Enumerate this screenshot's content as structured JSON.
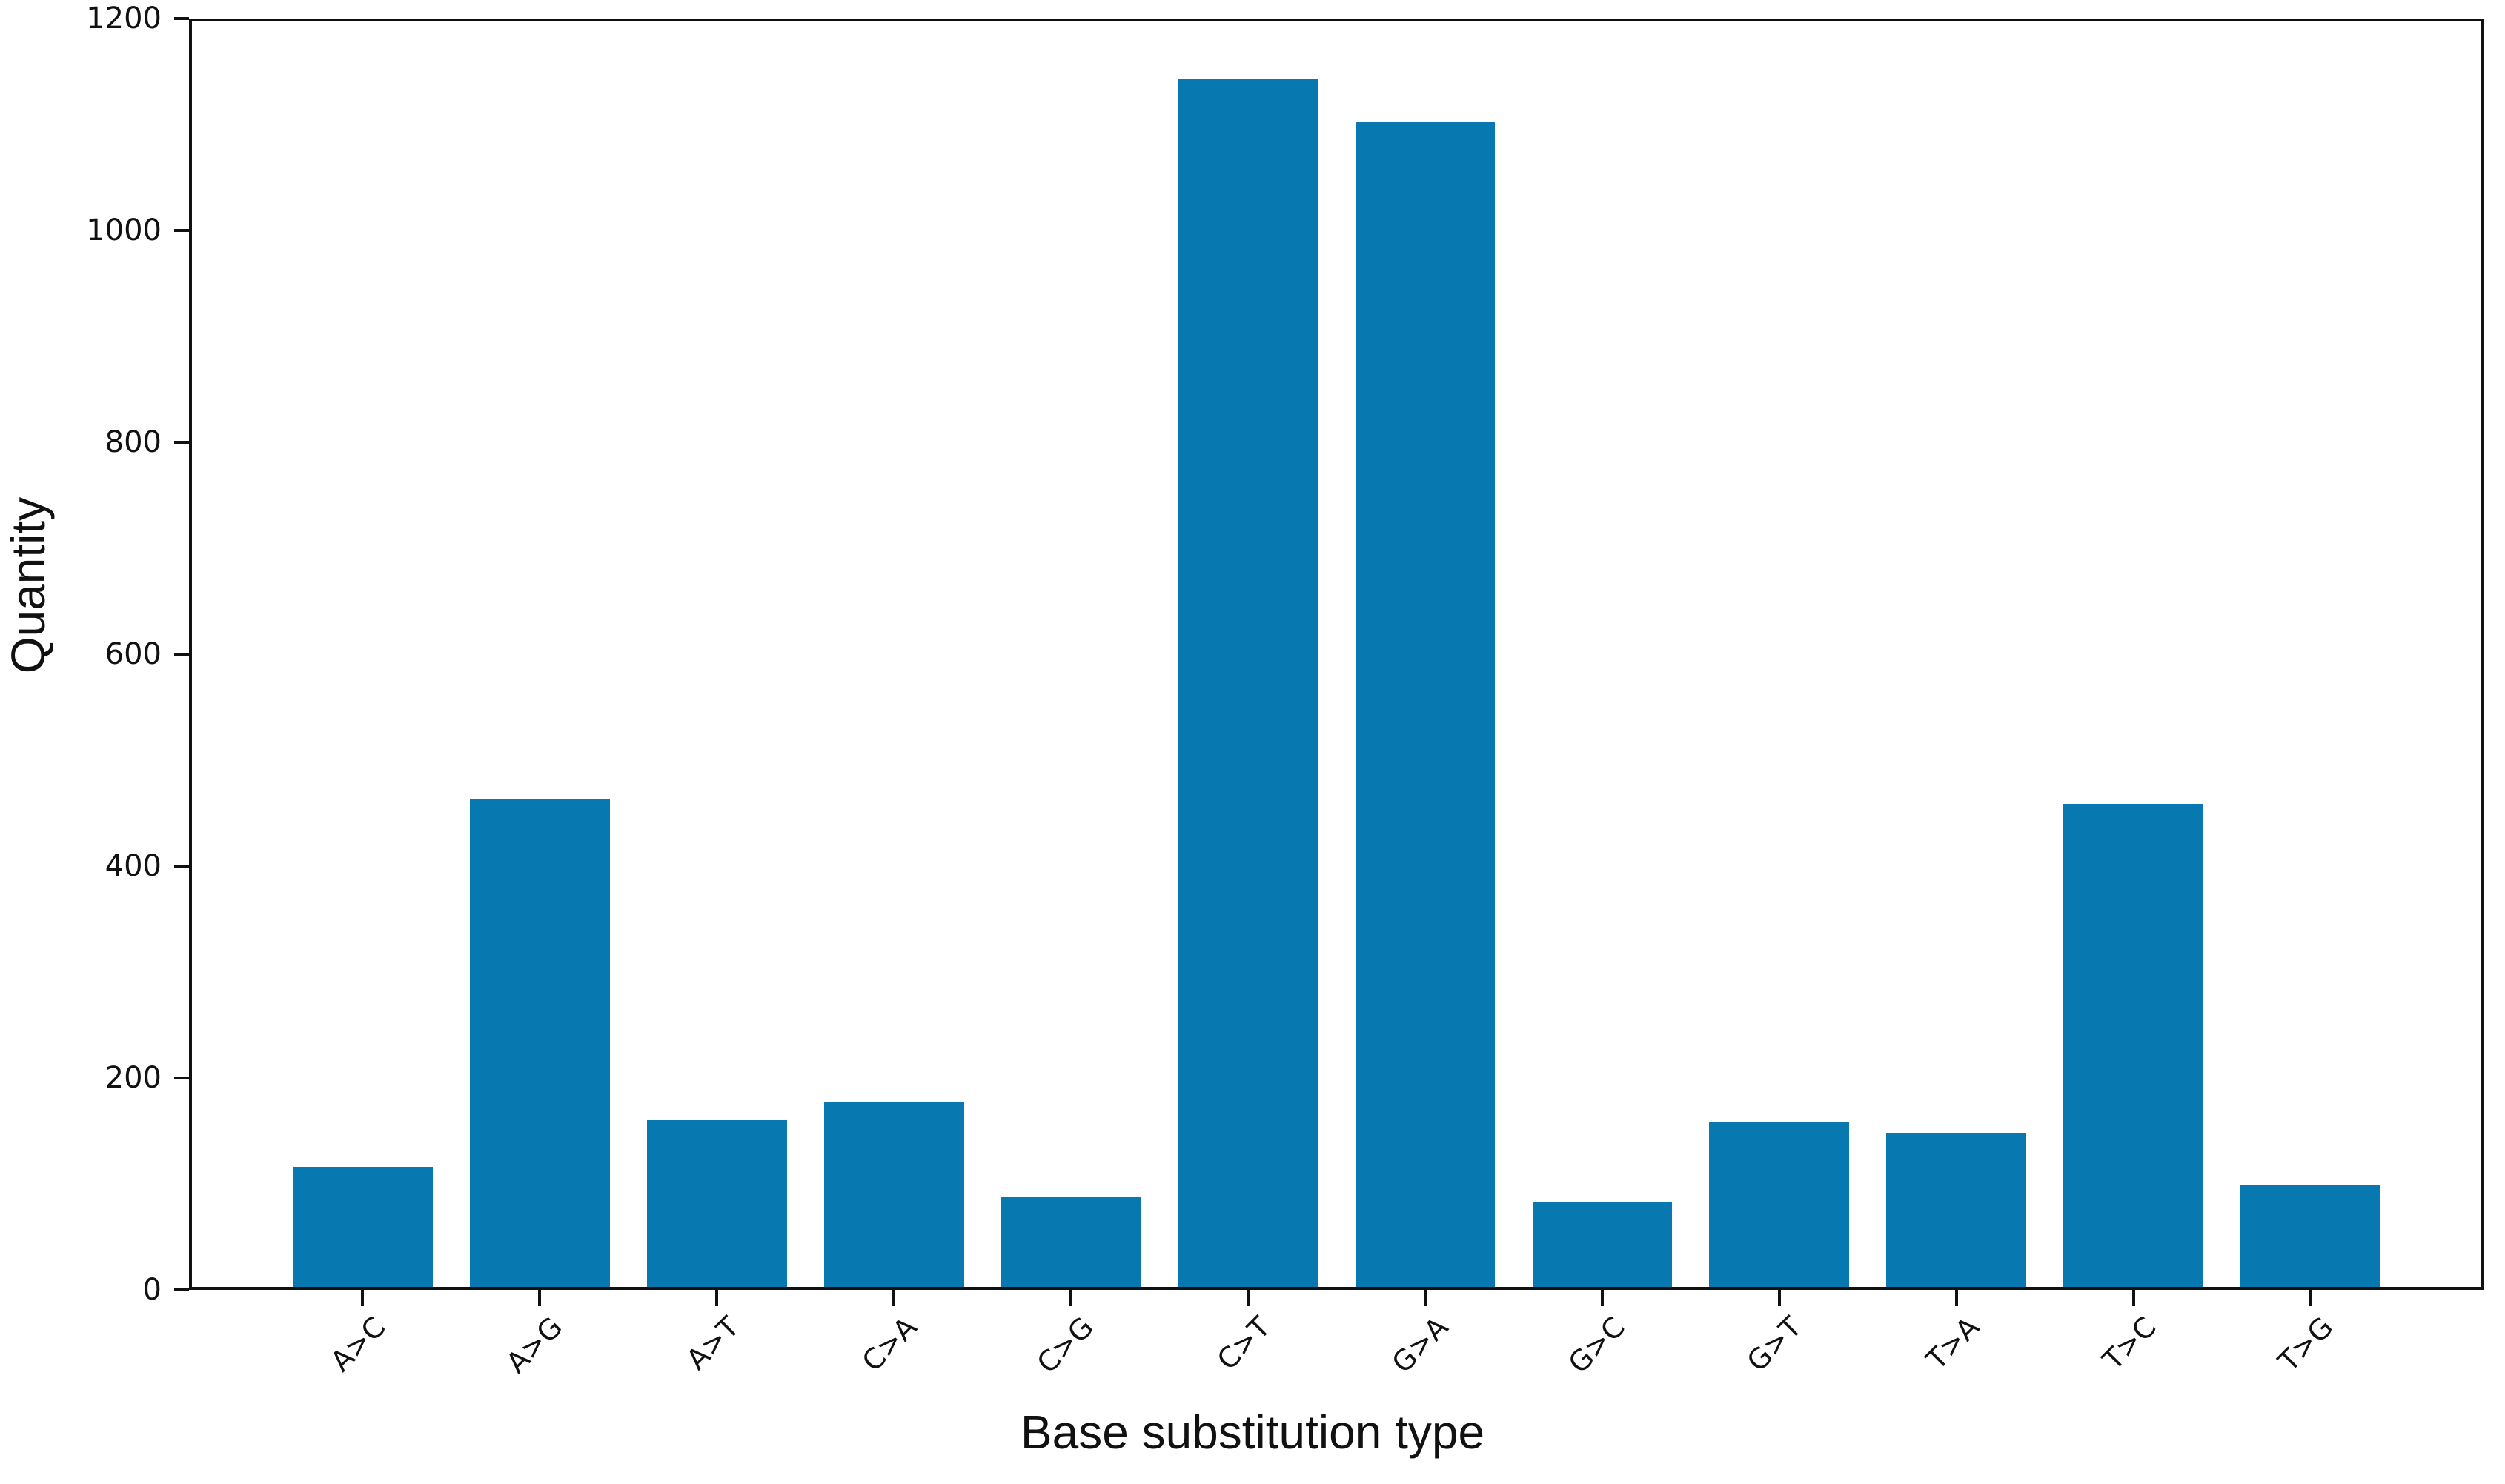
{
  "figure": {
    "background": "#ffffff",
    "axis_color": "#111111"
  },
  "chart_data": {
    "type": "bar",
    "title": "",
    "xlabel": "Base substitution type",
    "ylabel": "Quantity",
    "categories": [
      "A>C",
      "A>G",
      "A>T",
      "C>A",
      "C>G",
      "C>T",
      "G>A",
      "G>C",
      "G>T",
      "T>A",
      "T>C",
      "T>G"
    ],
    "values": [
      114,
      463,
      158,
      175,
      85,
      1145,
      1105,
      81,
      157,
      146,
      458,
      96
    ],
    "ylim": [
      0,
      1200
    ],
    "yticks": [
      0,
      200,
      400,
      600,
      800,
      1000,
      1200
    ],
    "bar_color": "#0878b0",
    "grid": false,
    "legend_position": "none"
  }
}
